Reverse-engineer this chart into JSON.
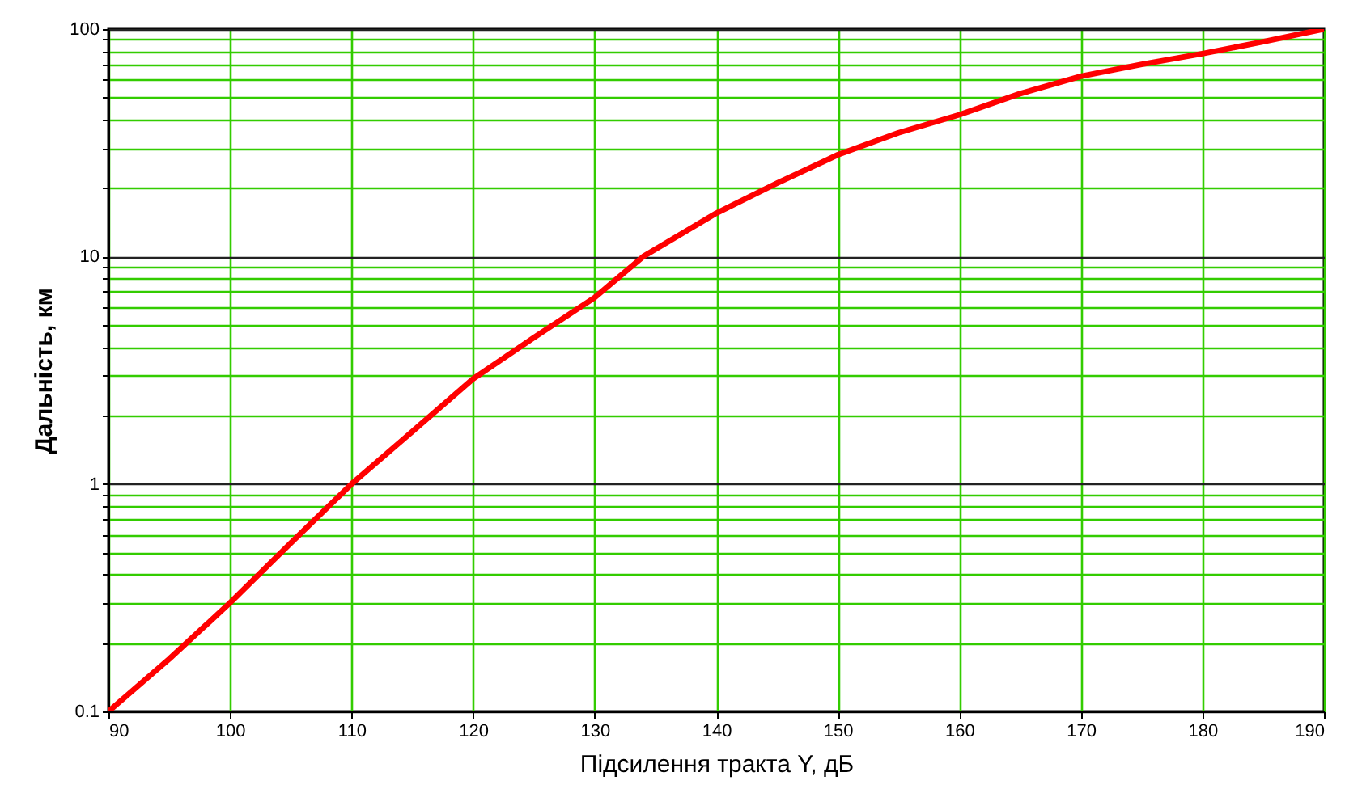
{
  "chart_data": {
    "type": "line",
    "xlabel": "Підсилення тракта  Y, дБ",
    "ylabel": "Дальність, км",
    "log": "y",
    "grid": true,
    "marker": "none",
    "line_style": "solid",
    "x": [
      90,
      95,
      100,
      105,
      110,
      115,
      120,
      125,
      130,
      134,
      140,
      145,
      150,
      155,
      160,
      165,
      170,
      175,
      180,
      185,
      190
    ],
    "series": [
      {
        "color": "#ff0000",
        "values": [
          0.1,
          0.17,
          0.3,
          0.55,
          1,
          1.7,
          2.9,
          4.4,
          6.6,
          10,
          15.5,
          21,
          28,
          35,
          42,
          52,
          62,
          70,
          78,
          88,
          100
        ]
      }
    ],
    "xlim": [
      90,
      190
    ],
    "xticks": [
      90,
      100,
      110,
      120,
      130,
      140,
      150,
      160,
      170,
      180,
      190
    ],
    "ylim": [
      0.1,
      100
    ],
    "yticks": [
      0.1,
      {
        "value": 0.2,
        "label": null
      },
      {
        "value": 0.3,
        "label": null
      },
      {
        "value": 0.4,
        "label": null
      },
      {
        "value": 0.5,
        "label": null
      },
      {
        "value": 0.6,
        "label": null
      },
      {
        "value": 0.7,
        "label": null
      },
      {
        "value": 0.8,
        "label": null
      },
      {
        "value": 0.9,
        "label": null
      },
      1,
      {
        "value": 2,
        "label": null
      },
      {
        "value": 3,
        "label": null
      },
      {
        "value": 4,
        "label": null
      },
      {
        "value": 5,
        "label": null
      },
      {
        "value": 6,
        "label": null
      },
      {
        "value": 7,
        "label": null
      },
      {
        "value": 8,
        "label": null
      },
      {
        "value": 9,
        "label": null
      },
      10,
      {
        "value": 20,
        "label": null
      },
      {
        "value": 30,
        "label": null
      },
      {
        "value": 40,
        "label": null
      },
      {
        "value": 50,
        "label": null
      },
      {
        "value": 60,
        "label": null
      },
      {
        "value": 70,
        "label": null
      },
      {
        "value": 80,
        "label": null
      },
      {
        "value": 90,
        "label": null
      },
      100
    ]
  }
}
